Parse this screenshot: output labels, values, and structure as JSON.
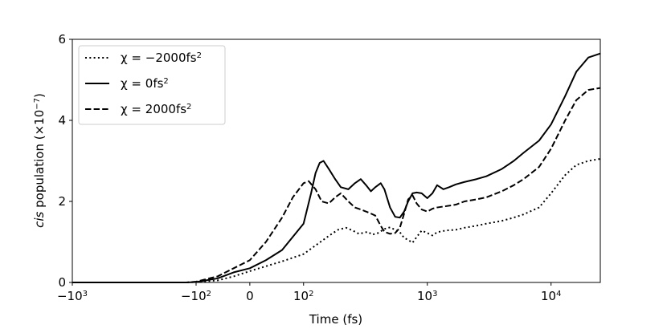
{
  "chart_data": {
    "type": "line",
    "xlabel": "Time (fs)",
    "ylabel_italic": "cis",
    "ylabel_rest": " population (×10",
    "ylabel_exp": "−7",
    "ylabel_close": ")",
    "x_scale": "symlog",
    "x_linthresh": 100,
    "xlim": [
      -1000,
      25000
    ],
    "ylim": [
      0,
      6
    ],
    "y_ticks": [
      0,
      2,
      4,
      6
    ],
    "x_ticks": [
      {
        "value": -1000,
        "base": "−10",
        "exp": "3"
      },
      {
        "value": -100,
        "base": "−10",
        "exp": "2"
      },
      {
        "value": 0,
        "base": "0",
        "exp": ""
      },
      {
        "value": 100,
        "base": "10",
        "exp": "2"
      },
      {
        "value": 1000,
        "base": "10",
        "exp": "3"
      },
      {
        "value": 10000,
        "base": "10",
        "exp": "4"
      }
    ],
    "legend_position": "top-left",
    "series": [
      {
        "name": "χ = −2000fs²",
        "legend_prefix": "χ = −2000fs",
        "legend_sup": "2",
        "style": "dotted",
        "x": [
          -1000,
          -500,
          -200,
          -120,
          -100,
          -60,
          -30,
          0,
          30,
          60,
          100,
          130,
          160,
          190,
          220,
          250,
          280,
          300,
          330,
          360,
          400,
          450,
          500,
          550,
          600,
          650,
          700,
          760,
          820,
          900,
          1000,
          1100,
          1200,
          1400,
          1700,
          2000,
          2500,
          3000,
          4000,
          5000,
          6000,
          8000,
          10000,
          13000,
          16000,
          20000,
          25000
        ],
        "y": [
          0,
          0,
          0,
          0,
          0.01,
          0.05,
          0.15,
          0.28,
          0.4,
          0.52,
          0.7,
          0.95,
          1.15,
          1.3,
          1.35,
          1.28,
          1.2,
          1.22,
          1.25,
          1.18,
          1.22,
          1.32,
          1.36,
          1.3,
          1.24,
          1.1,
          1.05,
          0.98,
          1.12,
          1.28,
          1.22,
          1.16,
          1.24,
          1.28,
          1.3,
          1.35,
          1.4,
          1.45,
          1.52,
          1.6,
          1.68,
          1.85,
          2.2,
          2.65,
          2.9,
          3.0,
          3.05
        ]
      },
      {
        "name": "χ = 0fs²",
        "legend_prefix": "χ = 0fs",
        "legend_sup": "2",
        "style": "solid",
        "x": [
          -1000,
          -500,
          -200,
          -120,
          -100,
          -60,
          -30,
          0,
          30,
          60,
          100,
          115,
          125,
          135,
          145,
          160,
          180,
          200,
          230,
          260,
          290,
          320,
          350,
          380,
          420,
          450,
          500,
          550,
          600,
          650,
          700,
          760,
          820,
          900,
          1000,
          1100,
          1200,
          1350,
          1500,
          1700,
          2000,
          2500,
          3000,
          4000,
          5000,
          6000,
          8000,
          10000,
          13000,
          16000,
          20000,
          25000
        ],
        "y": [
          0,
          0,
          0,
          0,
          0.01,
          0.1,
          0.25,
          0.35,
          0.55,
          0.8,
          1.45,
          2.2,
          2.7,
          2.95,
          3.0,
          2.8,
          2.55,
          2.35,
          2.3,
          2.45,
          2.55,
          2.4,
          2.25,
          2.35,
          2.45,
          2.3,
          1.85,
          1.62,
          1.6,
          1.75,
          2.0,
          2.2,
          2.22,
          2.2,
          2.08,
          2.2,
          2.4,
          2.3,
          2.35,
          2.42,
          2.48,
          2.55,
          2.62,
          2.8,
          3.0,
          3.2,
          3.5,
          3.9,
          4.6,
          5.2,
          5.55,
          5.65
        ]
      },
      {
        "name": "χ = 2000fs²",
        "legend_prefix": "χ = 2000fs",
        "legend_sup": "2",
        "style": "dashed",
        "x": [
          -1000,
          -500,
          -200,
          -120,
          -100,
          -60,
          -30,
          0,
          30,
          60,
          80,
          100,
          110,
          125,
          140,
          160,
          180,
          200,
          230,
          260,
          290,
          320,
          350,
          380,
          420,
          450,
          500,
          550,
          600,
          650,
          700,
          760,
          820,
          900,
          1000,
          1100,
          1200,
          1400,
          1700,
          2000,
          2500,
          3000,
          4000,
          5000,
          6000,
          8000,
          10000,
          13000,
          16000,
          20000,
          25000
        ],
        "y": [
          0,
          0,
          0,
          0,
          0.02,
          0.15,
          0.35,
          0.55,
          1.0,
          1.6,
          2.1,
          2.45,
          2.5,
          2.3,
          2.0,
          1.95,
          2.1,
          2.2,
          2.0,
          1.85,
          1.8,
          1.75,
          1.7,
          1.65,
          1.4,
          1.25,
          1.2,
          1.22,
          1.35,
          1.7,
          2.05,
          2.15,
          1.95,
          1.8,
          1.75,
          1.82,
          1.85,
          1.88,
          1.92,
          2.0,
          2.05,
          2.1,
          2.25,
          2.4,
          2.55,
          2.85,
          3.3,
          4.0,
          4.5,
          4.75,
          4.8
        ]
      }
    ]
  }
}
